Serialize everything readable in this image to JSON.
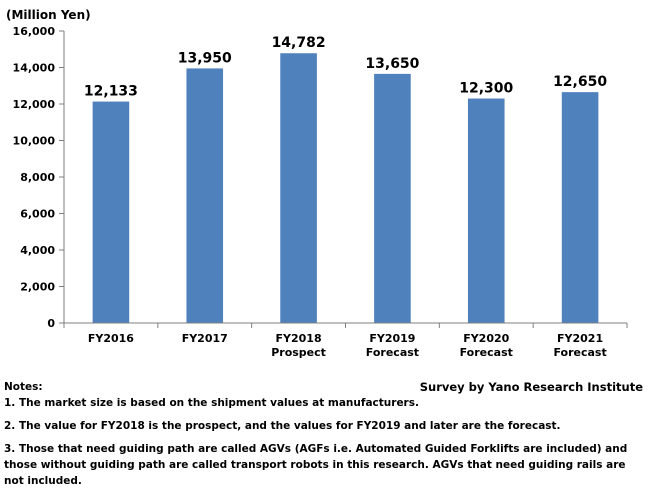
{
  "chart_data": {
    "type": "bar",
    "ylabel": "(Million Yen)",
    "categories": [
      [
        "FY2016"
      ],
      [
        "FY2017"
      ],
      [
        "FY2018",
        "Prospect"
      ],
      [
        "FY2019",
        "Forecast"
      ],
      [
        "FY2020",
        "Forecast"
      ],
      [
        "FY2021",
        "Forecast"
      ]
    ],
    "values": [
      12133,
      13950,
      14782,
      13650,
      12300,
      12650
    ],
    "value_labels": [
      "12,133",
      "13,950",
      "14,782",
      "13,650",
      "12,300",
      "12,650"
    ],
    "ylim": [
      0,
      16000
    ],
    "yticks": [
      0,
      2000,
      4000,
      6000,
      8000,
      10000,
      12000,
      14000,
      16000
    ],
    "ytick_labels": [
      "0",
      "2,000",
      "4,000",
      "6,000",
      "8,000",
      "10,000",
      "12,000",
      "14,000",
      "16,000"
    ],
    "bar_color": "#4f81bd",
    "grid": false,
    "legend": "none"
  },
  "notes": {
    "heading": "Notes:",
    "source": "Survey by Yano Research Institute",
    "items": [
      "1. The market size is based on the shipment values at manufacturers.",
      "2. The value for FY2018 is the prospect, and the values for FY2019 and later are the forecast.",
      "3. Those that need guiding path are called AGVs (AGFs i.e. Automated Guided Forklifts are included) and those without guiding path are called transport robots in this research. AGVs that need guiding rails are not included."
    ]
  }
}
